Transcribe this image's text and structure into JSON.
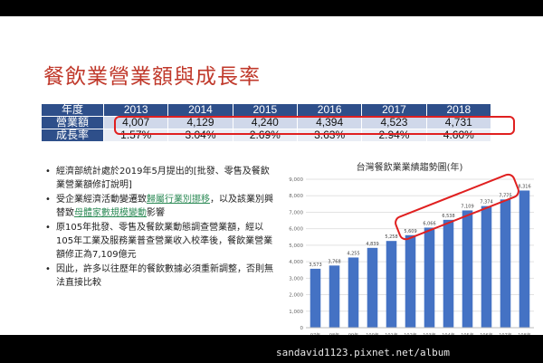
{
  "slide_title": "餐飲業營業額與成長率",
  "table": {
    "header_label": "年度",
    "years": [
      "2013",
      "2014",
      "2015",
      "2016",
      "2017",
      "2018"
    ],
    "revenue_label": "營業額",
    "revenue": [
      "4,007",
      "4,129",
      "4,240",
      "4,394",
      "4,523",
      "4,731"
    ],
    "growth_label": "成長率",
    "growth": [
      "1.57%",
      "3.04%",
      "2.69%",
      "3.63%",
      "2.94%",
      "4.60%"
    ]
  },
  "bullets": [
    {
      "parts": [
        {
          "text": "經濟部統計處於2019年5月提出的[批發、零售及餐飲業營業額修訂說明]"
        }
      ]
    },
    {
      "parts": [
        {
          "text": "受企業經濟活動變遷致"
        },
        {
          "text": "歸屬行業別挪移",
          "green": true
        },
        {
          "text": "，以及該業別興替致"
        },
        {
          "text": "母體家數規模變動",
          "green": true
        },
        {
          "text": "影響"
        }
      ]
    },
    {
      "parts": [
        {
          "text": "原105年批發、零售及餐飲業動態調查營業額，經以105年工業及服務業普查營業收入校準後，餐飲業營業額修正為7,109億元"
        }
      ]
    },
    {
      "parts": [
        {
          "text": "因此，許多以往歷年的餐飲數據必須重新調整，否則無法直接比較"
        }
      ]
    }
  ],
  "chart_data": {
    "type": "bar",
    "title": "台灣餐飲業業績趨勢圖(年)",
    "categories": [
      "97年",
      "98年",
      "99年",
      "100年",
      "101年",
      "102年",
      "103年",
      "104年",
      "105年",
      "106年",
      "107年",
      "108年"
    ],
    "values": [
      3573,
      3768,
      4255,
      4839,
      5258,
      5609,
      6066,
      6538,
      7109,
      7374,
      7775,
      8316
    ],
    "value_labels": [
      "3,573",
      "3,768",
      "4,255",
      "4,839",
      "5,258",
      "5,609",
      "6,066",
      "6,538",
      "7,109",
      "7,374",
      "7,775",
      "8,316"
    ],
    "ylim": [
      0,
      9000
    ],
    "yticks": [
      0,
      1000,
      2000,
      3000,
      4000,
      5000,
      6000,
      7000,
      8000,
      9000
    ],
    "ytick_labels": [
      "0",
      "1,000",
      "2,000",
      "3,000",
      "4,000",
      "5,000",
      "6,000",
      "7,000",
      "8,000",
      "9,000"
    ],
    "grid": true,
    "bar_color": "#4472c4",
    "highlight_color": "#e02020",
    "highlighted_categories": [
      "102年",
      "103年",
      "104年",
      "105年",
      "106年",
      "107年"
    ]
  },
  "watermark": "sandavid1123.pixnet.net/album"
}
